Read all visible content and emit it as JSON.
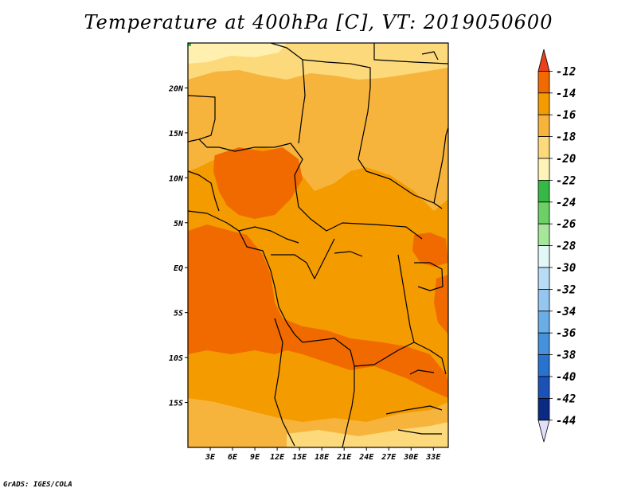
{
  "title": "Temperature at 400hPa [C], VT: 2019050600",
  "credit": "GrADS: IGES/COLA",
  "map": {
    "lat_labels": [
      "20N",
      "15N",
      "10N",
      "5N",
      "EQ",
      "5S",
      "10S",
      "15S"
    ],
    "lon_labels": [
      "3E",
      "6E",
      "9E",
      "12E",
      "15E",
      "18E",
      "21E",
      "24E",
      "27E",
      "30E",
      "33E"
    ],
    "lat_values": [
      20,
      15,
      10,
      5,
      0,
      -5,
      -10,
      -15
    ],
    "lon_values": [
      3,
      6,
      9,
      12,
      15,
      18,
      21,
      24,
      27,
      30,
      33
    ],
    "lat_range": [
      -20,
      25
    ],
    "lon_range": [
      0,
      35
    ],
    "field": "400hPa temperature (C)"
  },
  "colorbar": {
    "levels": [
      "-12",
      "-14",
      "-16",
      "-18",
      "-20",
      "-22",
      "-24",
      "-26",
      "-28",
      "-30",
      "-32",
      "-34",
      "-36",
      "-38",
      "-40",
      "-42",
      "-44"
    ],
    "colors": [
      "#e8411b",
      "#f06a00",
      "#f49b00",
      "#f7b43c",
      "#fcd97a",
      "#fff4b8",
      "#36b844",
      "#6cd066",
      "#a6e69a",
      "#e2f7f7",
      "#b8dcf5",
      "#94c6ef",
      "#6aaee8",
      "#4592dc",
      "#2a72cf",
      "#1a52b8",
      "#0b2a82",
      "#0f1a60",
      "#e0e0f8"
    ]
  }
}
